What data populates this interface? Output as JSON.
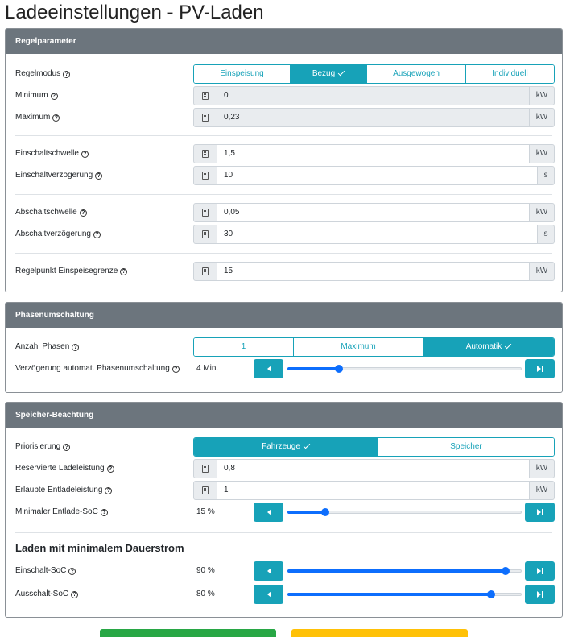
{
  "page": {
    "title": "Ladeeinstellungen - PV-Laden"
  },
  "regelparameter": {
    "header": "Regelparameter",
    "regelmodus": {
      "label": "Regelmodus",
      "options": [
        "Einspeisung",
        "Bezug",
        "Ausgewogen",
        "Individuell"
      ],
      "selected": "Bezug"
    },
    "minimum": {
      "label": "Minimum",
      "value": "0",
      "unit": "kW"
    },
    "maximum": {
      "label": "Maximum",
      "value": "0,23",
      "unit": "kW"
    },
    "einschaltschwelle": {
      "label": "Einschaltschwelle",
      "value": "1,5",
      "unit": "kW"
    },
    "einschaltverzoegerung": {
      "label": "Einschaltverzögerung",
      "value": "10",
      "unit": "s"
    },
    "abschaltschwelle": {
      "label": "Abschaltschwelle",
      "value": "0,05",
      "unit": "kW"
    },
    "abschaltverzoegerung": {
      "label": "Abschaltverzögerung",
      "value": "30",
      "unit": "s"
    },
    "regelpunkt": {
      "label": "Regelpunkt Einspeisegrenze",
      "value": "15",
      "unit": "kW"
    }
  },
  "phasenumschaltung": {
    "header": "Phasenumschaltung",
    "anzahl_phasen": {
      "label": "Anzahl Phasen",
      "options": [
        "1",
        "Maximum",
        "Automatik"
      ],
      "selected": "Automatik"
    },
    "verzoegerung": {
      "label": "Verzögerung automat. Phasenumschaltung",
      "value": "4 Min.",
      "slider_fraction": 0.22
    }
  },
  "speicher": {
    "header": "Speicher-Beachtung",
    "priorisierung": {
      "label": "Priorisierung",
      "options": [
        "Fahrzeuge",
        "Speicher"
      ],
      "selected": "Fahrzeuge"
    },
    "reservierte": {
      "label": "Reservierte Ladeleistung",
      "value": "0,8",
      "unit": "kW"
    },
    "erlaubte": {
      "label": "Erlaubte Entladeleistung",
      "value": "1",
      "unit": "kW"
    },
    "min_soc": {
      "label": "Minimaler Entlade-SoC",
      "value": "15 %",
      "slider_fraction": 0.16
    },
    "dauerstrom_heading": "Laden mit minimalem Dauerstrom",
    "einschalt_soc": {
      "label": "Einschalt-SoC",
      "value": "90 %",
      "slider_fraction": 0.93
    },
    "ausschalt_soc": {
      "label": "Ausschalt-SoC",
      "value": "80 %",
      "slider_fraction": 0.87
    }
  },
  "colors": {
    "accent": "#17a2b8",
    "slider": "#0d6efd",
    "header": "#6c757d",
    "save": "#28a745",
    "reset": "#ffc107"
  }
}
